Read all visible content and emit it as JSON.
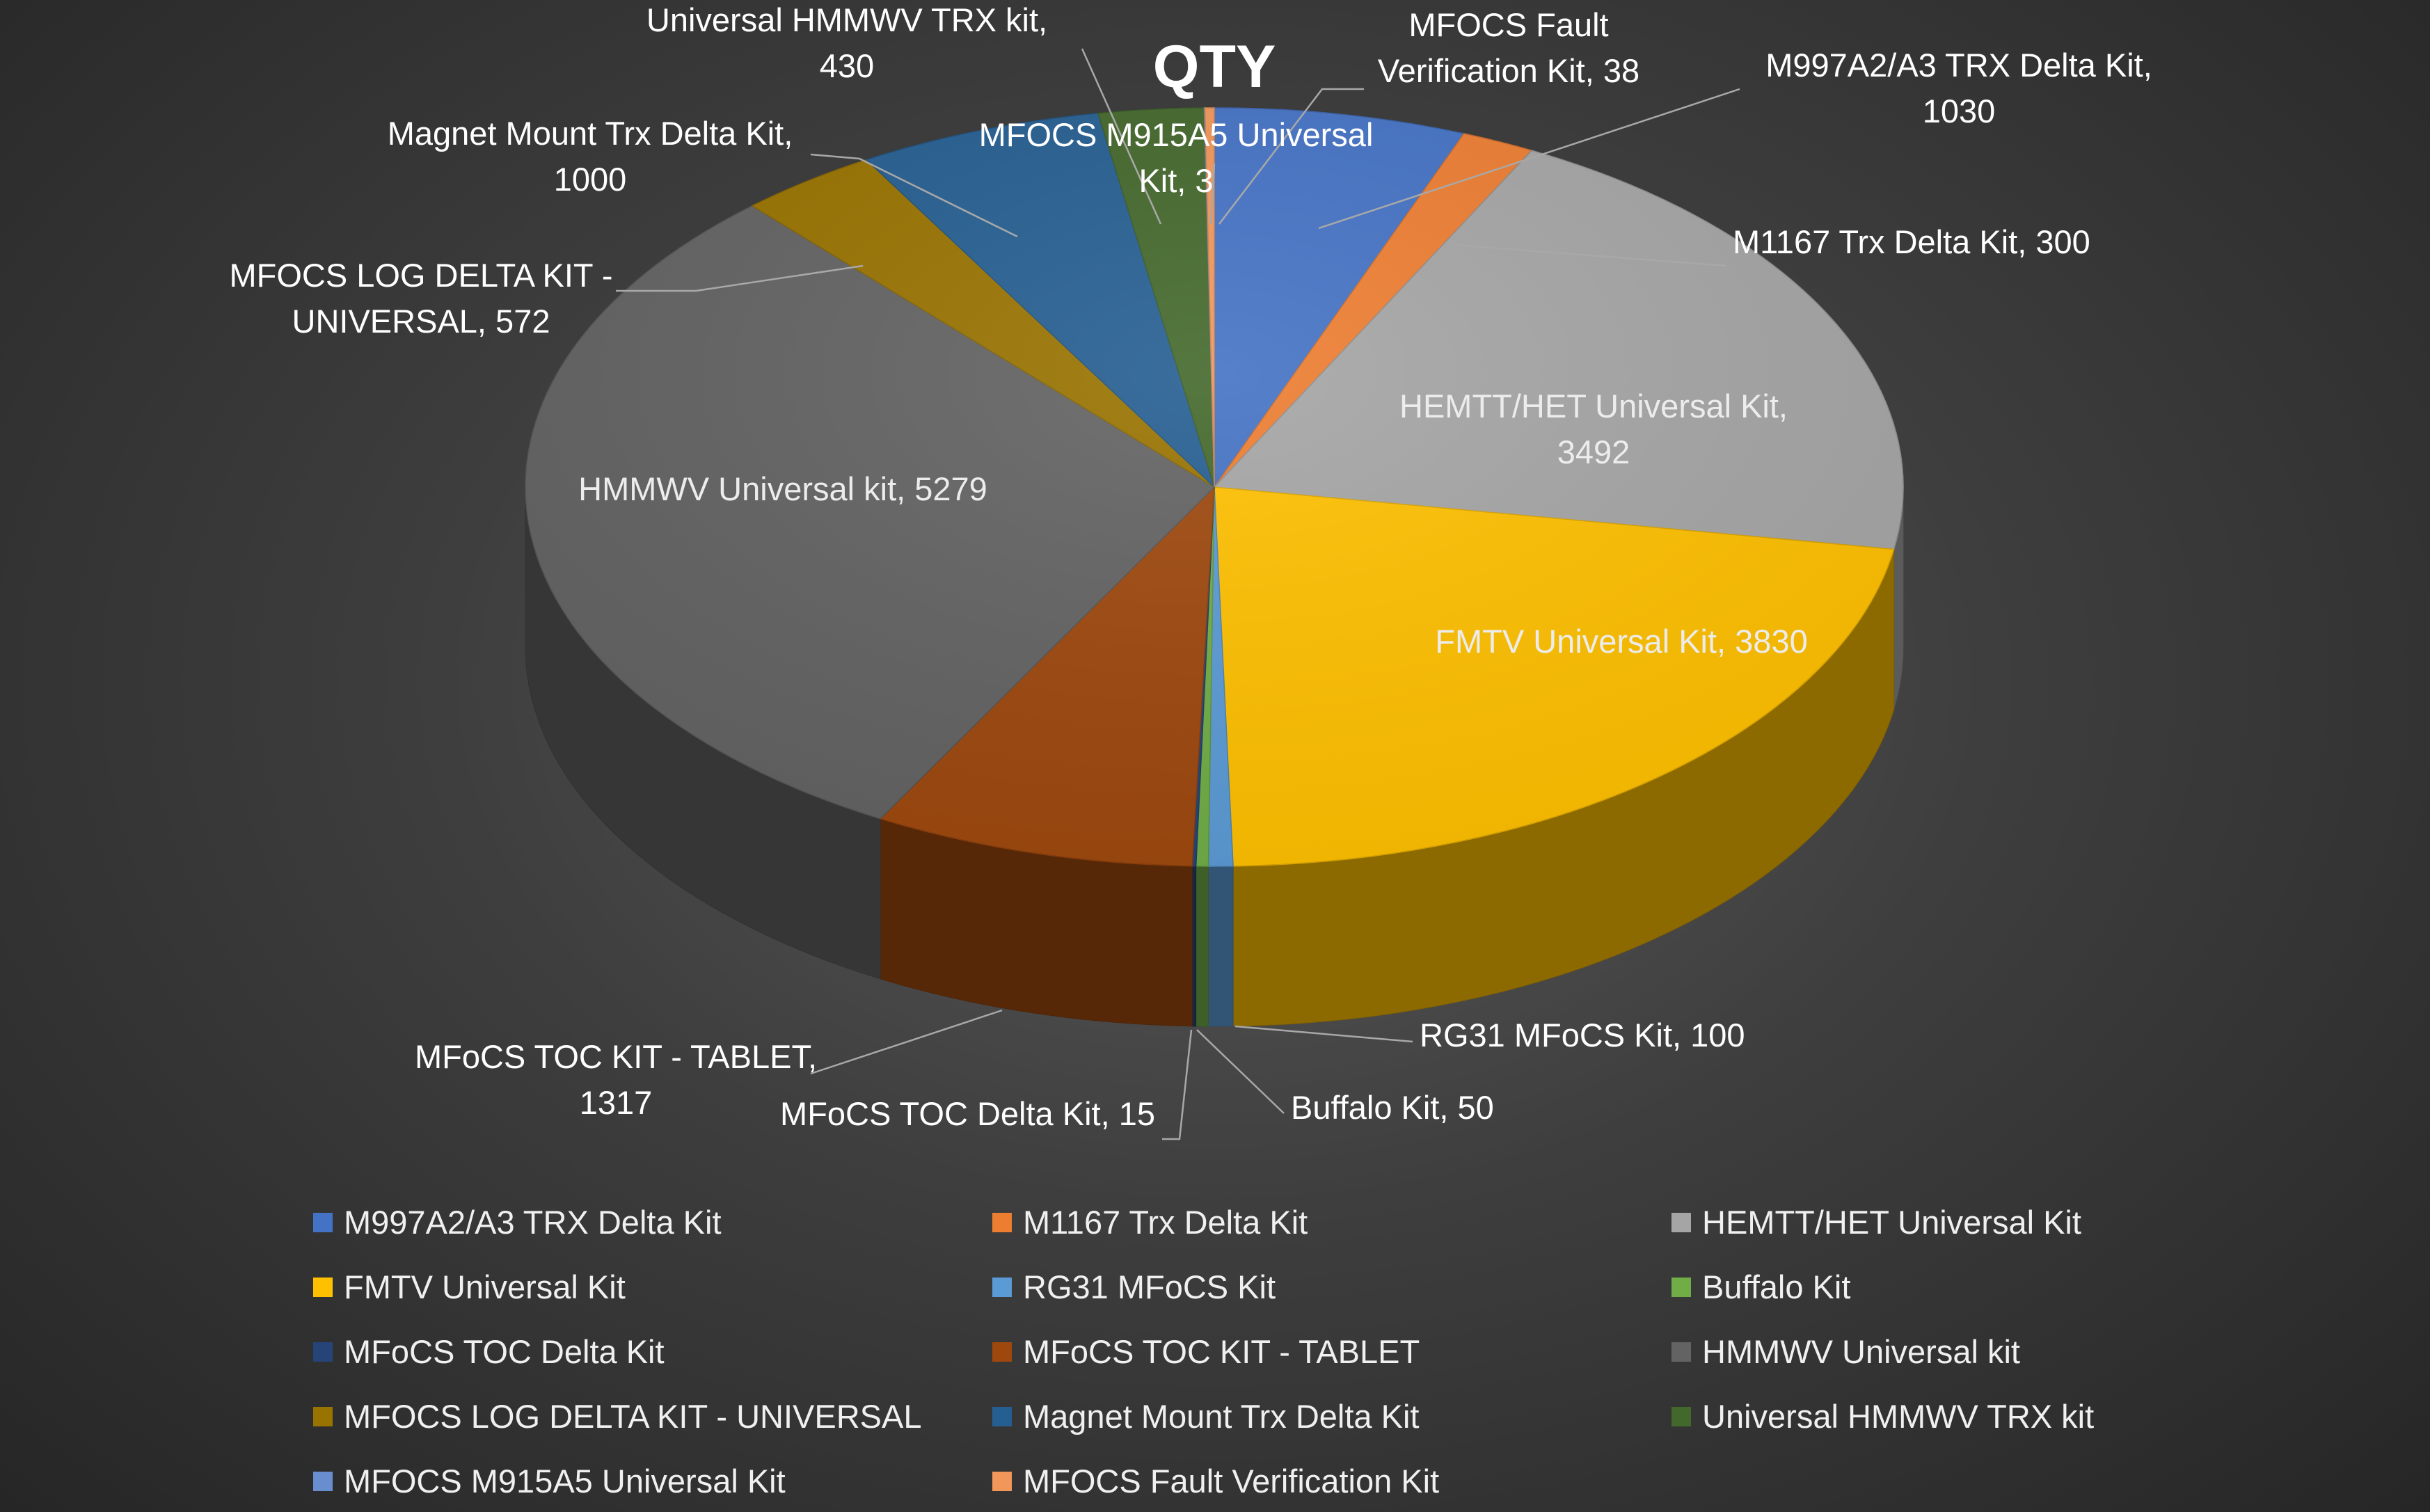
{
  "chart_data": {
    "type": "pie",
    "title": "QTY",
    "legend_position": "bottom",
    "slices": [
      {
        "label": "M997A2/A3 TRX Delta Kit",
        "value": 1030,
        "color": "#4472C4",
        "data_label": "M997A2/A3 TRX Delta Kit, 1030"
      },
      {
        "label": "M1167 Trx Delta Kit",
        "value": 300,
        "color": "#ED7D31",
        "data_label": "M1167 Trx Delta Kit, 300"
      },
      {
        "label": "HEMTT/HET Universal Kit",
        "value": 3492,
        "color": "#A5A5A5",
        "data_label": "HEMTT/HET Universal Kit, 3492"
      },
      {
        "label": "FMTV Universal Kit",
        "value": 3830,
        "color": "#FFC000",
        "data_label": "FMTV Universal Kit, 3830"
      },
      {
        "label": "RG31 MFoCS Kit",
        "value": 100,
        "color": "#5B9BD5",
        "data_label": "RG31 MFoCS Kit, 100"
      },
      {
        "label": "Buffalo Kit",
        "value": 50,
        "color": "#70AD47",
        "data_label": "Buffalo Kit, 50"
      },
      {
        "label": "MFoCS TOC Delta Kit",
        "value": 15,
        "color": "#264478",
        "data_label": "MFoCS TOC Delta Kit, 15"
      },
      {
        "label": "MFoCS TOC KIT - TABLET",
        "value": 1317,
        "color": "#9E480E",
        "data_label": "MFoCS TOC KIT - TABLET, 1317"
      },
      {
        "label": "HMMWV Universal kit",
        "value": 5279,
        "color": "#636363",
        "data_label": "HMMWV Universal kit, 5279"
      },
      {
        "label": "MFOCS LOG DELTA KIT - UNIVERSAL",
        "value": 572,
        "color": "#997300",
        "data_label": "MFOCS LOG DELTA KIT - UNIVERSAL, 572"
      },
      {
        "label": "Magnet Mount Trx Delta Kit",
        "value": 1000,
        "color": "#255E91",
        "data_label": "Magnet Mount Trx Delta Kit, 1000"
      },
      {
        "label": "Universal HMMWV TRX kit",
        "value": 430,
        "color": "#43682B",
        "data_label": "Universal HMMWV TRX kit, 430"
      },
      {
        "label": "MFOCS M915A5 Universal Kit",
        "value": 3,
        "color": "#698ED0",
        "data_label": "MFOCS M915A5 Universal Kit, 3"
      },
      {
        "label": "MFOCS Fault Verification Kit",
        "value": 38,
        "color": "#F1975A",
        "data_label": "MFOCS Fault Verification Kit, 38"
      }
    ]
  }
}
